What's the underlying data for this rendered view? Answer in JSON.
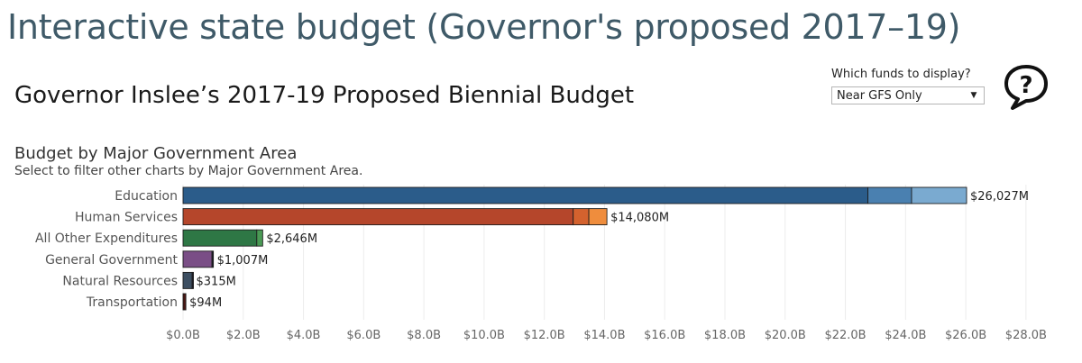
{
  "page": {
    "title": "Interactive state budget (Governor's proposed 2017–19)"
  },
  "dashboard": {
    "title": "Governor Inslee’s 2017-19 Proposed Biennial Budget"
  },
  "filter": {
    "label": "Which funds to display?",
    "selected": "Near GFS Only",
    "caret_icon": "caret-down-icon"
  },
  "help": {
    "icon": "help-speech-bubble-icon",
    "glyph": "?"
  },
  "chart": {
    "title": "Budget by Major Government Area",
    "subtitle": "Select to filter other charts by Major Government Area."
  },
  "chart_data": {
    "type": "bar",
    "orientation": "horizontal",
    "stacked": true,
    "title": "Budget by Major Government Area",
    "subtitle": "Select to filter other charts by Major Government Area.",
    "xlabel": "",
    "ylabel": "",
    "xlim": [
      0,
      28
    ],
    "x_unit": "billions of dollars",
    "grid": true,
    "categories": [
      "Education",
      "Human Services",
      "All Other Expenditures",
      "General Government",
      "Natural Resources",
      "Transportation"
    ],
    "totals_millions": [
      26027,
      14080,
      2646,
      1007,
      315,
      94
    ],
    "total_labels": [
      "$26,027M",
      "$14,080M",
      "$2,646M",
      "$1,007M",
      "$315M",
      "$94M"
    ],
    "segments_millions": [
      [
        22750,
        1450,
        1827
      ],
      [
        12960,
        520,
        600
      ],
      [
        2450,
        196
      ],
      [
        960,
        47
      ],
      [
        300,
        15
      ],
      [
        94
      ]
    ],
    "colors": [
      [
        "#2b5c8a",
        "#4a80b0",
        "#7aaad0"
      ],
      [
        "#b5462b",
        "#d4622e",
        "#ef8d3d"
      ],
      [
        "#2e7745",
        "#4a9a55"
      ],
      [
        "#7a4e86",
        "#1c1c2a"
      ],
      [
        "#3d4f62",
        "#1c1c2a"
      ],
      [
        "#4a1612"
      ]
    ],
    "x_ticks": [
      0,
      2,
      4,
      6,
      8,
      10,
      12,
      14,
      16,
      18,
      20,
      22,
      24,
      26,
      28
    ],
    "x_tick_labels": [
      "$0.0B",
      "$2.0B",
      "$4.0B",
      "$6.0B",
      "$8.0B",
      "$10.0B",
      "$12.0B",
      "$14.0B",
      "$16.0B",
      "$18.0B",
      "$20.0B",
      "$22.0B",
      "$24.0B",
      "$26.0B",
      "$28.0B"
    ]
  }
}
